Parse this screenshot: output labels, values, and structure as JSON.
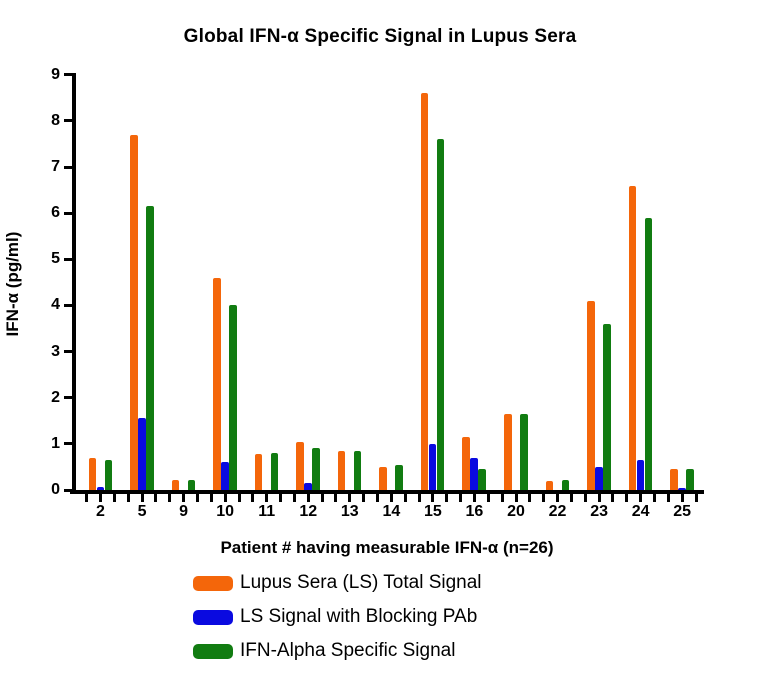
{
  "chart_data": {
    "type": "bar",
    "title": "Global IFN-α Specific Signal in Lupus Sera",
    "xlabel": "Patient # having measurable IFN-α (n=26)",
    "ylabel": "IFN-α (pg/ml)",
    "ylim": [
      0,
      9
    ],
    "y_ticks": [
      0,
      1,
      2,
      3,
      4,
      5,
      6,
      7,
      8,
      9
    ],
    "grid": false,
    "legend_position": "below-chart-left",
    "axis_color": "#000000",
    "background_color": "#ffffff",
    "categories": [
      "2",
      "5",
      "9",
      "10",
      "11",
      "12",
      "13",
      "14",
      "15",
      "16",
      "20",
      "22",
      "23",
      "24",
      "25"
    ],
    "series": [
      {
        "name": "Lupus Sera (LS) Total Signal",
        "color": "#F4660A",
        "values": [
          0.7,
          7.7,
          0.22,
          4.6,
          0.78,
          1.05,
          0.85,
          0.5,
          8.6,
          1.15,
          1.65,
          0.2,
          4.1,
          6.6,
          0.45
        ]
      },
      {
        "name": "LS Signal with Blocking PAb",
        "color": "#0A0AE0",
        "values": [
          0.07,
          1.55,
          0.0,
          0.6,
          0.0,
          0.15,
          0.0,
          0.0,
          1.0,
          0.7,
          0.0,
          0.0,
          0.5,
          0.65,
          0.05
        ]
      },
      {
        "name": "IFN-Alpha Specific Signal",
        "color": "#117C11",
        "values": [
          0.65,
          6.15,
          0.22,
          4.0,
          0.8,
          0.9,
          0.85,
          0.55,
          7.6,
          0.45,
          1.65,
          0.22,
          3.6,
          5.9,
          0.45
        ]
      }
    ]
  }
}
